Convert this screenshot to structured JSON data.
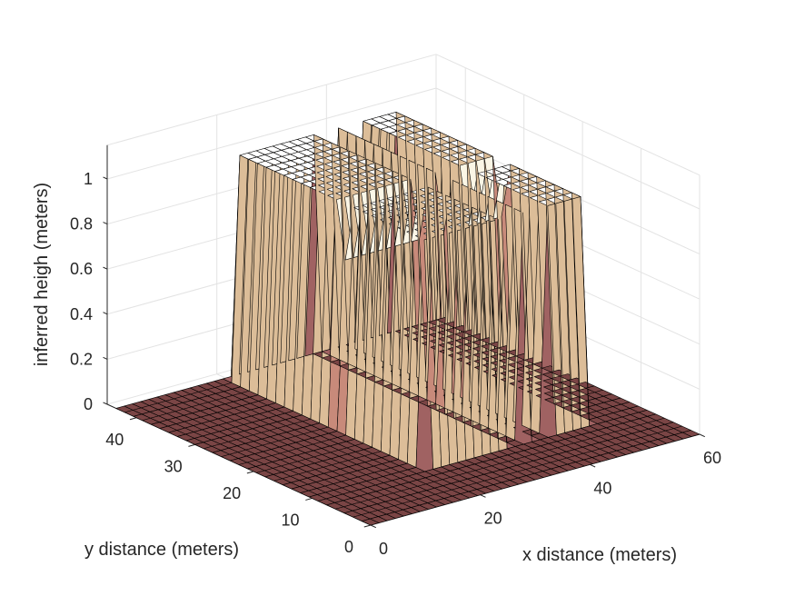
{
  "chart_data": {
    "type": "surface3d",
    "xlabel": "x distance (meters)",
    "ylabel": "y distance (meters)",
    "zlabel": "inferred heigh (meters)",
    "xlim": [
      0,
      60
    ],
    "ylim": [
      0,
      45
    ],
    "zlim": [
      0,
      1.15
    ],
    "x_ticks": [
      "0",
      "20",
      "40",
      "60"
    ],
    "y_ticks": [
      "0",
      "10",
      "20",
      "30",
      "40"
    ],
    "z_ticks": [
      "0",
      "0.2",
      "0.4",
      "0.6",
      "0.8",
      "1"
    ],
    "grid": true,
    "surface": {
      "x_range": [
        0,
        60
      ],
      "y_range": [
        0,
        44
      ],
      "grid_step": 1.5,
      "base_height": 0,
      "block": {
        "x_range": [
          20,
          50
        ],
        "y_range": [
          10,
          42
        ],
        "height": 1
      },
      "notches": [
        {
          "x_range": [
            36,
            38
          ],
          "y_range": [
            10,
            42
          ],
          "height": 0
        },
        {
          "x_range": [
            40,
            42
          ],
          "y_range": [
            10,
            42
          ],
          "height": 0
        },
        {
          "x_range": [
            20,
            50
          ],
          "y_range": [
            23,
            25
          ],
          "height": 0.75
        }
      ]
    },
    "colormap": [
      "#7a4545",
      "#a06262",
      "#c88a7a",
      "#dcbd98",
      "#eee2bb",
      "#fbf6e6",
      "#ffffff"
    ]
  }
}
